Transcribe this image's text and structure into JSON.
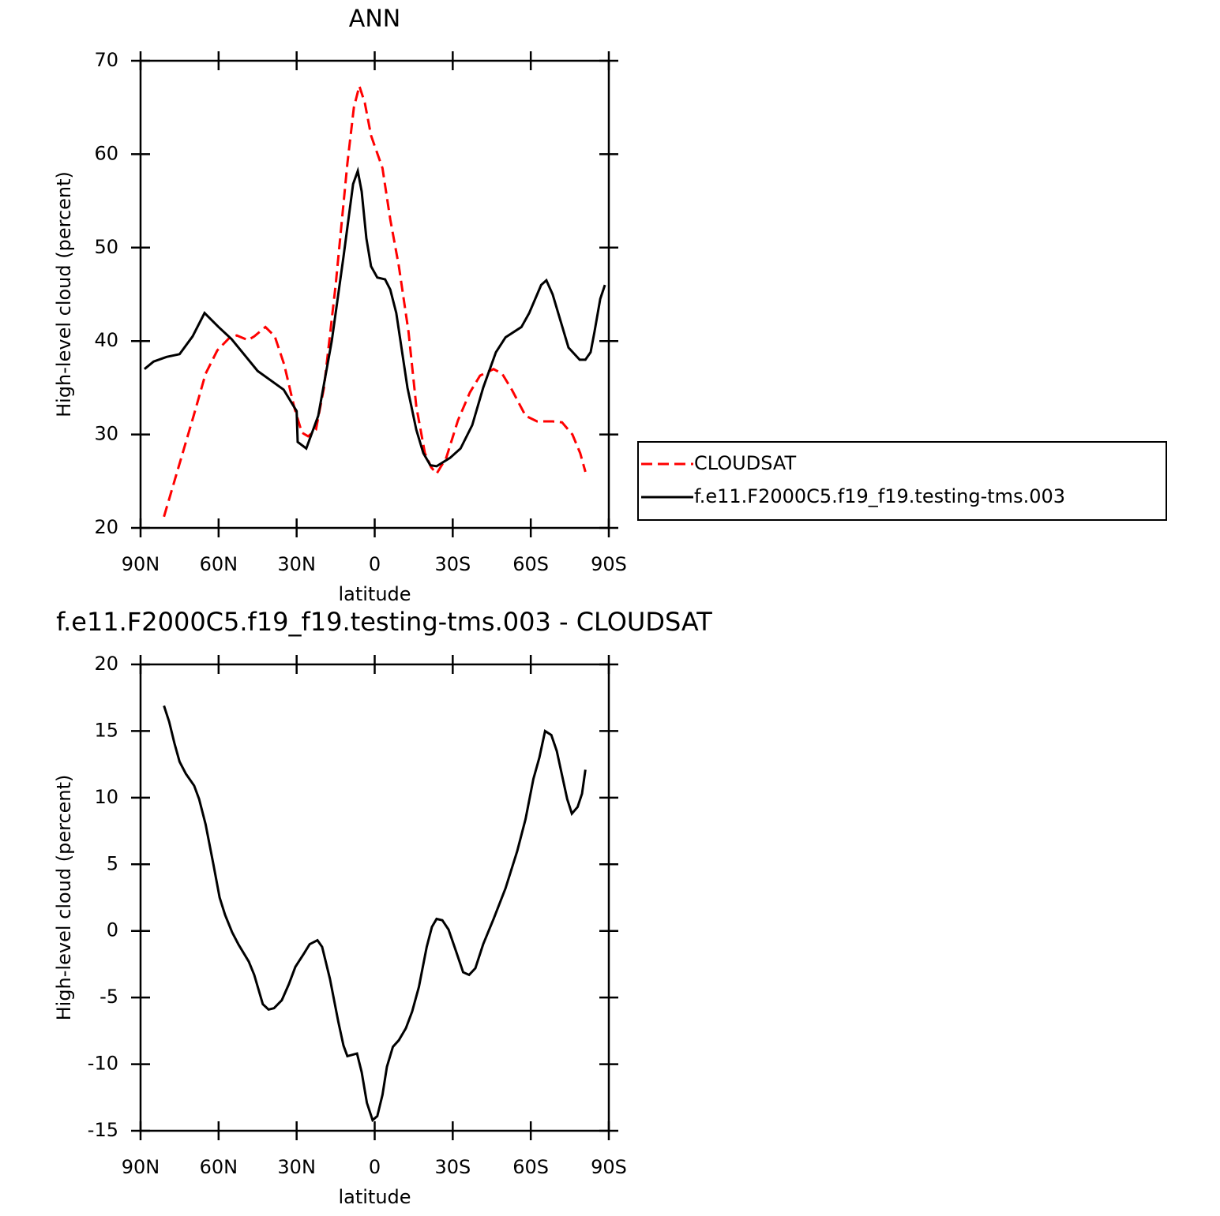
{
  "chart_data": [
    {
      "type": "line",
      "title": "ANN",
      "xlabel": "latitude",
      "ylabel": "High-level cloud (percent)",
      "xlim": [
        90,
        -90
      ],
      "ylim": [
        20,
        70
      ],
      "xticks": [
        {
          "value": 90,
          "label": "90N"
        },
        {
          "value": 60,
          "label": "60N"
        },
        {
          "value": 30,
          "label": "30N"
        },
        0,
        {
          "value": -30,
          "label": "30S"
        },
        {
          "value": -60,
          "label": "60S"
        },
        {
          "value": -90,
          "label": "90S"
        }
      ],
      "yticks": [
        20,
        30,
        40,
        50,
        60,
        70
      ],
      "legend": "right",
      "series": [
        {
          "name": "CLOUDSAT",
          "color": "#ff0000",
          "line_style": "dashed",
          "x": [
            81,
            69.6,
            65,
            60.5,
            56,
            53,
            48.7,
            46.3,
            42,
            38.4,
            34.8,
            31,
            28,
            25.6,
            22.6,
            19.5,
            15,
            10.5,
            8,
            5.9,
            3.8,
            1.4,
            -3,
            -6,
            -9.3,
            -13,
            -16,
            -19.3,
            -21.7,
            -23.8,
            -27.5,
            -32,
            -36.6,
            -40.5,
            -45.7,
            -49,
            -52.7,
            -58,
            -62.4,
            -68.4,
            -72,
            -76,
            -79,
            -81
          ],
          "values": [
            21.2,
            32,
            36.5,
            39,
            40.3,
            40.6,
            40.1,
            40.5,
            41.5,
            40.5,
            37.5,
            33,
            30.2,
            29.8,
            30.5,
            35,
            46,
            59,
            65,
            67.3,
            65.5,
            62,
            58.5,
            53,
            48,
            41,
            33,
            28,
            26.5,
            25.8,
            27.5,
            31.5,
            34.5,
            36.3,
            37,
            36.5,
            34.8,
            32,
            31.4,
            31.4,
            31.3,
            30,
            28,
            26
          ]
        },
        {
          "name": "f.e11.F2000C5.f19_f19.testing-tms.003",
          "color": "#000000",
          "line_style": "solid",
          "x": [
            88.5,
            85,
            80,
            75,
            70,
            65.4,
            60,
            55,
            50,
            45,
            40,
            35,
            30,
            29.6,
            26.3,
            21.7,
            16.5,
            12,
            8.3,
            6.5,
            5,
            3.2,
            1.4,
            -1,
            -4,
            -6,
            -8.3,
            -12.6,
            -16,
            -18.7,
            -21.4,
            -23.8,
            -29,
            -33,
            -37.5,
            -41.7,
            -46.6,
            -50.3,
            -56.4,
            -59.4,
            -64,
            -66,
            -68.4,
            -74.5,
            -78.8,
            -81,
            -83,
            -84.5,
            -86.7,
            -88.5
          ],
          "values": [
            37,
            37.8,
            38.3,
            38.6,
            40.5,
            43,
            41.5,
            40.2,
            38.5,
            36.8,
            35.8,
            34.8,
            32.5,
            29.2,
            28.5,
            32,
            40,
            49,
            56.8,
            58.2,
            56,
            51,
            48,
            46.8,
            46.6,
            45.5,
            43,
            35,
            30.5,
            28,
            26.7,
            26.6,
            27.5,
            28.5,
            31,
            35,
            38.8,
            40.4,
            41.5,
            43,
            46,
            46.5,
            45,
            39.3,
            38,
            38,
            38.8,
            41,
            44.5,
            46
          ]
        }
      ]
    },
    {
      "type": "line",
      "title": "f.e11.F2000C5.f19_f19.testing-tms.003 - CLOUDSAT",
      "xlabel": "latitude",
      "ylabel": "High-level cloud (percent)",
      "xlim": [
        90,
        -90
      ],
      "ylim": [
        -15,
        20
      ],
      "xticks": [
        {
          "value": 90,
          "label": "90N"
        },
        {
          "value": 60,
          "label": "60N"
        },
        {
          "value": 30,
          "label": "30N"
        },
        0,
        {
          "value": -30,
          "label": "30S"
        },
        {
          "value": -60,
          "label": "60S"
        },
        {
          "value": -90,
          "label": "90S"
        }
      ],
      "yticks": [
        -15,
        -10,
        -5,
        0,
        5,
        10,
        15,
        20
      ],
      "series": [
        {
          "color": "#000000",
          "line_style": "solid",
          "x": [
            81,
            79,
            77,
            75,
            72.6,
            69.4,
            67.5,
            65,
            62,
            59.6,
            57.5,
            54.8,
            52.4,
            48.4,
            46.3,
            43,
            40.8,
            38.7,
            35.7,
            33,
            30.5,
            27.2,
            25,
            22,
            20.2,
            17.2,
            14,
            12,
            10.5,
            6.8,
            5,
            3,
            0.8,
            -1,
            -3,
            -4.7,
            -7,
            -9.3,
            -12,
            -14.4,
            -17,
            -20,
            -22,
            -23.8,
            -26,
            -28.4,
            -31.4,
            -34,
            -36.3,
            -38.7,
            -41.7,
            -45.7,
            -50.3,
            -54.8,
            -58,
            -61,
            -63.3,
            -65.5,
            -67.9,
            -70,
            -72,
            -74,
            -75.8,
            -78,
            -79.7,
            -81
          ],
          "values": [
            16.9,
            15.7,
            14.1,
            12.7,
            11.8,
            10.9,
            9.9,
            8,
            5,
            2.5,
            1.2,
            -0.1,
            -1,
            -2.3,
            -3.3,
            -5.5,
            -5.9,
            -5.8,
            -5.2,
            -4,
            -2.7,
            -1.7,
            -1,
            -0.7,
            -1.2,
            -3.6,
            -6.8,
            -8.6,
            -9.4,
            -9.2,
            -10.6,
            -12.9,
            -14.2,
            -13.9,
            -12.3,
            -10.2,
            -8.7,
            -8.2,
            -7.3,
            -6.05,
            -4.2,
            -1.2,
            0.3,
            0.9,
            0.8,
            0.1,
            -1.6,
            -3.1,
            -3.3,
            -2.8,
            -1,
            0.9,
            3.2,
            6,
            8.4,
            11.4,
            13,
            15,
            14.7,
            13.5,
            11.7,
            9.9,
            8.8,
            9.3,
            10.3,
            12.1
          ]
        }
      ]
    }
  ]
}
